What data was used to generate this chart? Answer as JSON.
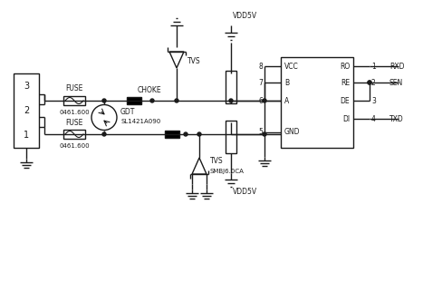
{
  "bg_color": "#ffffff",
  "line_color": "#1a1a1a",
  "line_width": 1.0,
  "connector_labels": [
    "3",
    "2",
    "1"
  ],
  "ic_pins_left": [
    "8",
    "7",
    "6",
    "5"
  ],
  "ic_pins_right": [
    "1",
    "2",
    "3",
    "4"
  ],
  "ic_labels_left": [
    "VCC",
    "B",
    "A",
    "GND"
  ],
  "ic_labels_right": [
    "RO",
    "RE",
    "DE",
    "DI"
  ],
  "ic_net_right": [
    "RXD",
    "SEN",
    "",
    "TXD"
  ],
  "fuse_label": "FUSE",
  "fuse_value": "0461.600",
  "choke_label": "CHOKE",
  "gdt_label": [
    "GDT",
    "SL1421A090"
  ],
  "tvs_top_label": "TVS",
  "tvs_bot_label": [
    "TVS",
    "SMBJ6.0CA"
  ],
  "vdd5v_top": "VDD5V",
  "vdd5v_bot": "VDD5V"
}
